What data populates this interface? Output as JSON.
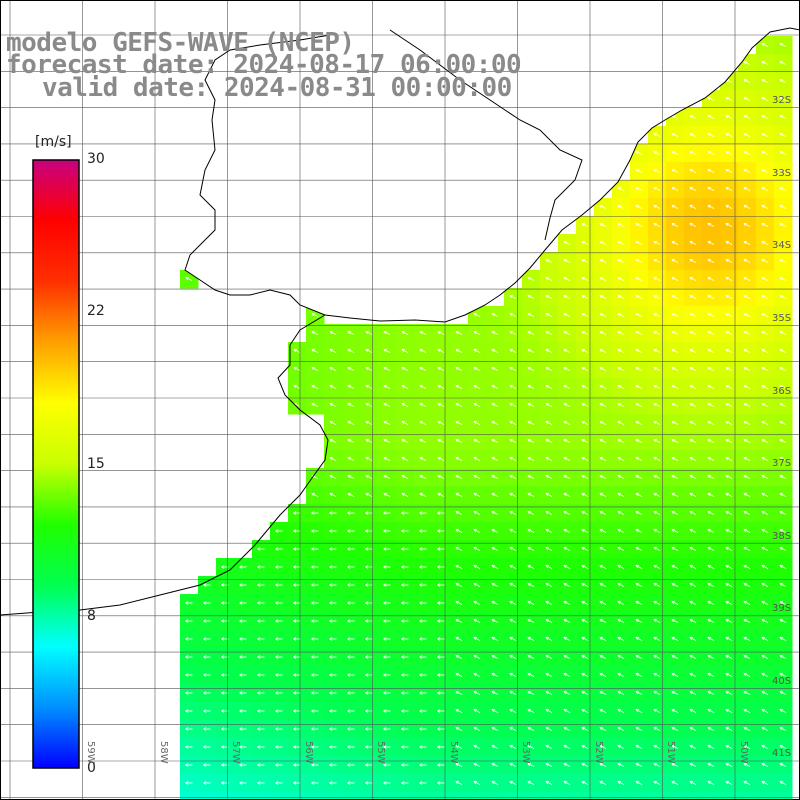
{
  "title": {
    "line1": "modelo GEFS-WAVE (NCEP)",
    "line2": "forecast date: 2024-08-17 06:00:00",
    "line3": "valid date: 2024-08-31 00:00:00"
  },
  "colorbar": {
    "unit": "[m/s]",
    "ticks": [
      {
        "label": "30",
        "value": 30
      },
      {
        "label": "22",
        "value": 22
      },
      {
        "label": "15",
        "value": 15
      },
      {
        "label": "8",
        "value": 8
      },
      {
        "label": "0",
        "value": 0
      }
    ],
    "max": 30,
    "colors": [
      "#0000ff",
      "#0090ff",
      "#00ffff",
      "#00ff50",
      "#20ff00",
      "#c8ff00",
      "#ffff00",
      "#ffa000",
      "#ff3000",
      "#ff0000",
      "#c80080"
    ]
  },
  "latitude_labels": [
    "32S",
    "33S",
    "34S",
    "35S",
    "36S",
    "37S",
    "38S",
    "39S",
    "40S",
    "41S"
  ],
  "longitude_labels": [
    "59W",
    "58W",
    "57W",
    "56W",
    "55W",
    "54W",
    "53W",
    "52W",
    "51W",
    "50W"
  ],
  "colors": {
    "land": "#ffffff",
    "coast": "#000000",
    "grid": "#555555",
    "arrow": "#ffffff",
    "title": "#8a8a8a"
  }
}
